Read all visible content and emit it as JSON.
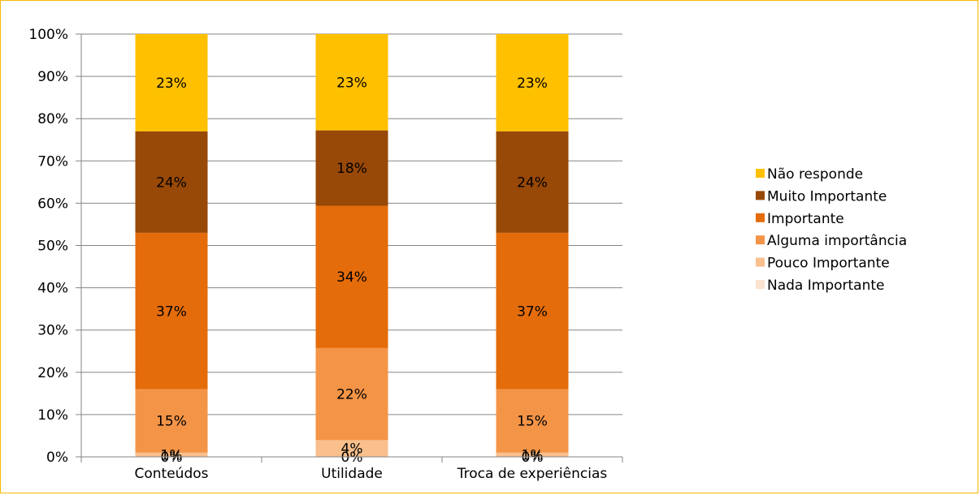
{
  "chart_data": {
    "type": "bar",
    "stacked": "percent",
    "categories": [
      "Conteúdos",
      "Utilidade",
      "Troca de experiências"
    ],
    "series": [
      {
        "name": "Nada Importante",
        "color": "#fbe3d1",
        "values": [
          0,
          0,
          0
        ],
        "labels": [
          "0%",
          "0%",
          "0%"
        ]
      },
      {
        "name": "Pouco Importante",
        "color": "#f9bf8c",
        "values": [
          1,
          4,
          1
        ],
        "labels": [
          "1%",
          "4%",
          "1%"
        ]
      },
      {
        "name": "Alguma importância",
        "color": "#f49447",
        "values": [
          15,
          22,
          15
        ],
        "labels": [
          "15%",
          "22%",
          "15%"
        ]
      },
      {
        "name": "Importante",
        "color": "#e46c0a",
        "values": [
          37,
          34,
          37
        ],
        "labels": [
          "37%",
          "34%",
          "37%"
        ]
      },
      {
        "name": "Muito Importante",
        "color": "#984807",
        "values": [
          24,
          18,
          24
        ],
        "labels": [
          "24%",
          "18%",
          "24%"
        ]
      },
      {
        "name": "Não responde",
        "color": "#ffc000",
        "values": [
          23,
          23,
          23
        ],
        "labels": [
          "23%",
          "23%",
          "23%"
        ]
      }
    ],
    "yticks": [
      "0%",
      "10%",
      "20%",
      "30%",
      "40%",
      "50%",
      "60%",
      "70%",
      "80%",
      "90%",
      "100%"
    ],
    "ylim": [
      0,
      100
    ],
    "grid": true,
    "legend_position": "right",
    "xlabel": "",
    "ylabel": "",
    "title": ""
  },
  "colors": {
    "frame_border": "#f5b800",
    "gridline": "#868686",
    "axis": "#868686"
  }
}
